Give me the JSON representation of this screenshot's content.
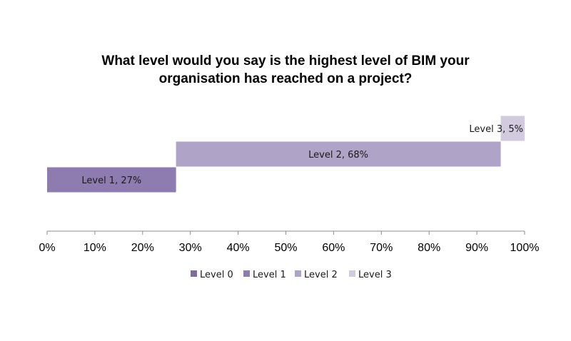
{
  "chart_data": {
    "type": "bar",
    "orientation": "horizontal",
    "stacked": true,
    "title": "What level would you say is the highest level of BIM your organisation has reached on a project?",
    "title_lines": [
      "What level would you say is the highest level of BIM your",
      "organisation has reached on a project?"
    ],
    "xlabel": "",
    "ylabel": "",
    "xlim": [
      0,
      100
    ],
    "x_ticks": [
      "0%",
      "10%",
      "20%",
      "30%",
      "40%",
      "50%",
      "60%",
      "70%",
      "80%",
      "90%",
      "100%"
    ],
    "grid": false,
    "legend_position": "bottom",
    "series": [
      {
        "name": "Level 0",
        "value": 0,
        "start": 0,
        "label": "",
        "color": "#7d6aa0"
      },
      {
        "name": "Level 1",
        "value": 27,
        "start": 0,
        "label": "Level 1, 27%",
        "color": "#8e7cb0"
      },
      {
        "name": "Level 2",
        "value": 68,
        "start": 27,
        "label": "Level 2, 68%",
        "color": "#b0a3c8"
      },
      {
        "name": "Level 3",
        "value": 5,
        "start": 95,
        "label": "Level 3, 5%",
        "color": "#d2cadf"
      }
    ]
  }
}
